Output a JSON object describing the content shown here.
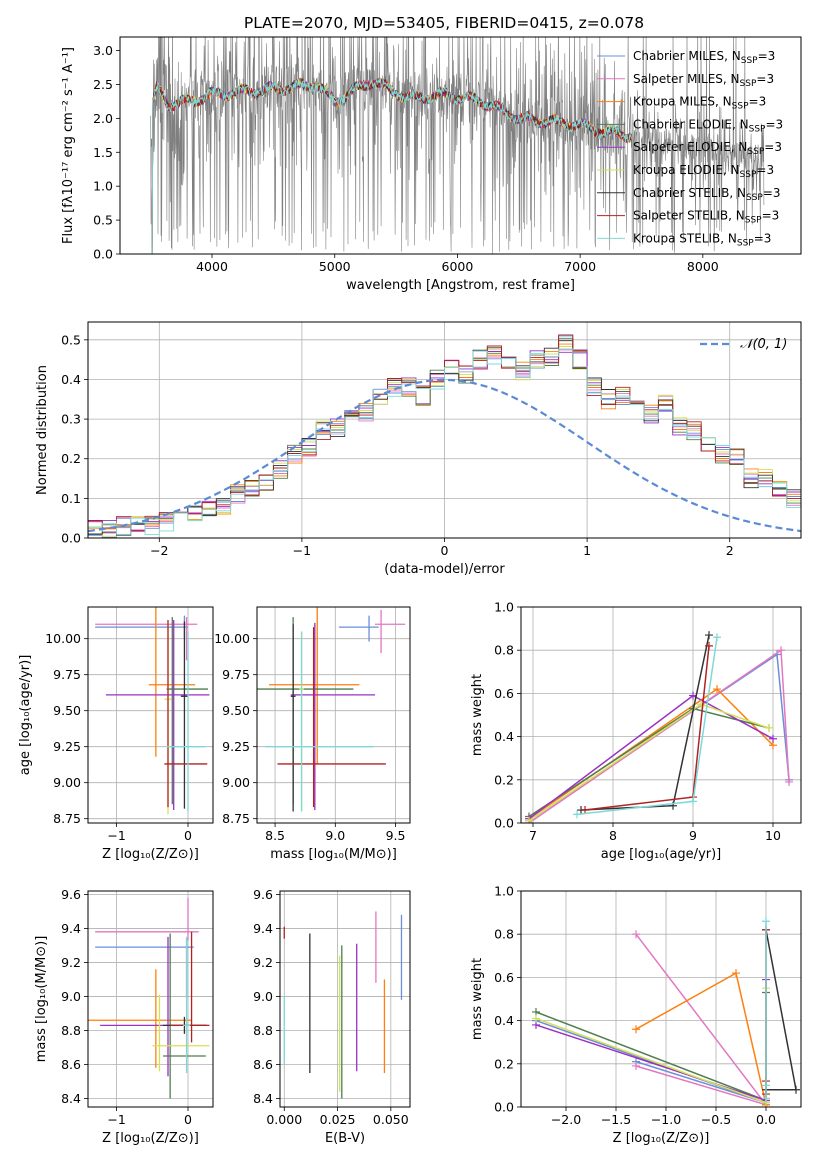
{
  "figure_title": "PLATE=2070, MJD=53405, FIBERID=0415, z=0.078",
  "chart_data": [
    {
      "type": "line",
      "id": "spectrum",
      "xlabel": "wavelength [Angstrom, rest frame]",
      "ylabel": "Flux [fλ10⁻¹⁷ erg cm⁻² s⁻¹ A⁻¹]",
      "xlim": [
        3250,
        8800
      ],
      "ylim": [
        0,
        3.2
      ],
      "xticks": [
        4000,
        5000,
        6000,
        7000,
        8000
      ],
      "yticks": [
        0.0,
        0.5,
        1.0,
        1.5,
        2.0,
        2.5,
        3.0
      ],
      "grid": false,
      "legend_position": "top-right",
      "data_color": "#7f7f7f",
      "data_wavelength_range": [
        3500,
        8500
      ],
      "model_wavelength_range": [
        3500,
        7420
      ],
      "model_continuum": {
        "x": [
          3500,
          3550,
          3650,
          3800,
          4000,
          4300,
          4600,
          4850,
          5000,
          5300,
          5600,
          5900,
          6200,
          6500,
          6800,
          7000,
          7200,
          7420,
          7700,
          8000,
          8300,
          8500
        ],
        "y": [
          2.05,
          2.45,
          2.2,
          2.25,
          2.35,
          2.4,
          2.45,
          2.5,
          2.25,
          2.55,
          2.3,
          2.35,
          2.25,
          2.0,
          1.95,
          1.9,
          1.8,
          1.75,
          1.65,
          1.55,
          1.45,
          1.4
        ]
      },
      "series": [
        {
          "name": "Chabrier MILES, N_SSP=3",
          "color": "#6a8fd8"
        },
        {
          "name": "Salpeter MILES, N_SSP=3",
          "color": "#e377c2"
        },
        {
          "name": "Kroupa MILES, N_SSP=3",
          "color": "#ff7f0e"
        },
        {
          "name": "Chabrier ELODIE, N_SSP=3",
          "color": "#4f7d4f"
        },
        {
          "name": "Salpeter ELODIE, N_SSP=3",
          "color": "#9b30c7"
        },
        {
          "name": "Kroupa ELODIE, N_SSP=3",
          "color": "#d4e157"
        },
        {
          "name": "Chabrier STELIB, N_SSP=3",
          "color": "#333333"
        },
        {
          "name": "Salpeter STELIB, N_SSP=3",
          "color": "#b22222"
        },
        {
          "name": "Kroupa STELIB, N_SSP=3",
          "color": "#7fd8d8"
        }
      ]
    },
    {
      "type": "histogram",
      "id": "residuals",
      "xlabel": "(data-model)/error",
      "ylabel": "Normed distribution",
      "xlim": [
        -2.5,
        2.5
      ],
      "ylim": [
        0,
        0.545
      ],
      "xticks": [
        -2,
        -1,
        0,
        1,
        2
      ],
      "yticks": [
        0.0,
        0.1,
        0.2,
        0.3,
        0.4,
        0.5
      ],
      "grid": true,
      "legend_position": "top-right",
      "reference_curve": {
        "label": "𝒩(0, 1)",
        "mean": 0,
        "sigma": 1,
        "color": "#5b8bd6"
      },
      "bin_width": 0.1,
      "bin_edges_start": -2.5,
      "base_heights": [
        0.02,
        0.02,
        0.03,
        0.04,
        0.03,
        0.04,
        0.05,
        0.06,
        0.08,
        0.08,
        0.11,
        0.13,
        0.14,
        0.17,
        0.21,
        0.23,
        0.27,
        0.28,
        0.3,
        0.32,
        0.36,
        0.38,
        0.38,
        0.36,
        0.4,
        0.43,
        0.41,
        0.45,
        0.46,
        0.44,
        0.42,
        0.45,
        0.46,
        0.49,
        0.45,
        0.38,
        0.35,
        0.36,
        0.34,
        0.31,
        0.34,
        0.28,
        0.27,
        0.24,
        0.21,
        0.2,
        0.15,
        0.15,
        0.13,
        0.1,
        0.09,
        0.07,
        0.07,
        0.05,
        0.04,
        0.04,
        0.03,
        0.03,
        0.02,
        0.02
      ],
      "series_colors": [
        "#6a8fd8",
        "#e377c2",
        "#ff7f0e",
        "#4f7d4f",
        "#9b30c7",
        "#d4e157",
        "#333333",
        "#b22222",
        "#7fd8d8"
      ]
    },
    {
      "type": "scatter",
      "id": "age_vs_Z",
      "xlabel": "Z [log₁₀(Z/Z⊙)]",
      "ylabel": "age  [log₁₀(age/yr)]",
      "xlim": [
        -1.4,
        0.35
      ],
      "ylim": [
        8.72,
        10.22
      ],
      "xticks": [
        -1,
        0
      ],
      "yticks": [
        8.75,
        9.0,
        9.25,
        9.5,
        9.75,
        10.0
      ],
      "grid": true,
      "points": [
        {
          "x": -0.05,
          "y": 10.08,
          "xerr": [
            1.25,
            0.05
          ],
          "yerr": [
            0.08,
            0.08
          ],
          "color": "#6a8fd8"
        },
        {
          "x": -0.02,
          "y": 10.1,
          "xerr": [
            1.28,
            0.15
          ],
          "yerr": [
            0.25,
            0.05
          ],
          "color": "#e377c2"
        },
        {
          "x": -0.45,
          "y": 9.68,
          "xerr": [
            0.1,
            0.55
          ],
          "yerr": [
            0.5,
            0.9
          ],
          "color": "#ff7f0e"
        },
        {
          "x": -0.22,
          "y": 9.65,
          "xerr": [
            0.08,
            0.5
          ],
          "yerr": [
            0.8,
            0.5
          ],
          "color": "#4f7d4f"
        },
        {
          "x": -0.2,
          "y": 9.61,
          "xerr": [
            0.95,
            0.5
          ],
          "yerr": [
            0.8,
            0.52
          ],
          "color": "#9b30c7"
        },
        {
          "x": -0.28,
          "y": 9.58,
          "xerr": [
            0.05,
            0.05
          ],
          "yerr": [
            0.8,
            0.5
          ],
          "color": "#d4e157"
        },
        {
          "x": -0.05,
          "y": 9.6,
          "xerr": [
            0.05,
            0.05
          ],
          "yerr": [
            0.78,
            0.52
          ],
          "color": "#333333"
        },
        {
          "x": -0.28,
          "y": 9.13,
          "xerr": [
            0.05,
            0.55
          ],
          "yerr": [
            0.3,
            1.0
          ],
          "color": "#b22222"
        },
        {
          "x": 0.0,
          "y": 9.25,
          "xerr": [
            0.3,
            0.25
          ],
          "yerr": [
            0.45,
            0.8
          ],
          "color": "#7fd8d8"
        }
      ]
    },
    {
      "type": "scatter",
      "id": "age_vs_mass",
      "xlabel": "mass [log₁₀(M/M⊙)]",
      "ylabel": "",
      "xlim": [
        8.35,
        9.62
      ],
      "ylim": [
        8.72,
        10.22
      ],
      "xticks": [
        8.5,
        9.0,
        9.5
      ],
      "yticks": [
        8.75,
        9.0,
        9.25,
        9.5,
        9.75,
        10.0
      ],
      "grid": true,
      "points": [
        {
          "x": 9.28,
          "y": 10.08,
          "xerr": [
            0.25,
            0.08
          ],
          "yerr": [
            0.1,
            0.08
          ],
          "color": "#6a8fd8"
        },
        {
          "x": 9.38,
          "y": 10.1,
          "xerr": [
            0.05,
            0.2
          ],
          "yerr": [
            0.2,
            0.1
          ],
          "color": "#e377c2"
        },
        {
          "x": 8.85,
          "y": 9.68,
          "xerr": [
            0.4,
            0.35
          ],
          "yerr": [
            0.55,
            0.9
          ],
          "color": "#ff7f0e"
        },
        {
          "x": 8.65,
          "y": 9.65,
          "xerr": [
            0.3,
            0.5
          ],
          "yerr": [
            0.8,
            0.5
          ],
          "color": "#4f7d4f"
        },
        {
          "x": 8.83,
          "y": 9.61,
          "xerr": [
            0.2,
            0.5
          ],
          "yerr": [
            0.8,
            0.5
          ],
          "color": "#9b30c7"
        },
        {
          "x": 8.72,
          "y": 9.65,
          "xerr": [
            0.02,
            0.02
          ],
          "yerr": [
            0.85,
            0.4
          ],
          "color": "#d4e157"
        },
        {
          "x": 8.65,
          "y": 9.6,
          "xerr": [
            0.02,
            0.02
          ],
          "yerr": [
            0.8,
            0.5
          ],
          "color": "#333333"
        },
        {
          "x": 8.82,
          "y": 9.13,
          "xerr": [
            0.3,
            0.6
          ],
          "yerr": [
            0.3,
            0.95
          ],
          "color": "#b22222"
        },
        {
          "x": 8.72,
          "y": 9.25,
          "xerr": [
            0.3,
            0.6
          ],
          "yerr": [
            0.45,
            0.8
          ],
          "color": "#7fd8d8"
        }
      ]
    },
    {
      "type": "line",
      "id": "weight_vs_age",
      "xlabel": "age  [log₁₀(age/yr)]",
      "ylabel": "mass weight",
      "xlim": [
        6.85,
        10.35
      ],
      "ylim": [
        0,
        1.0
      ],
      "xticks": [
        7,
        8,
        9,
        10
      ],
      "yticks": [
        0.0,
        0.2,
        0.4,
        0.6,
        0.8,
        1.0
      ],
      "grid": true,
      "series": [
        {
          "color": "#6a8fd8",
          "x": [
            6.95,
            10.05,
            10.2
          ],
          "y": [
            0.01,
            0.78,
            0.2
          ]
        },
        {
          "color": "#e377c2",
          "x": [
            6.95,
            10.1,
            10.2
          ],
          "y": [
            0.0,
            0.8,
            0.19
          ]
        },
        {
          "color": "#ff7f0e",
          "x": [
            6.95,
            9.3,
            10.0
          ],
          "y": [
            0.02,
            0.62,
            0.36
          ]
        },
        {
          "color": "#4f7d4f",
          "x": [
            6.95,
            9.0,
            9.95
          ],
          "y": [
            0.03,
            0.53,
            0.44
          ]
        },
        {
          "color": "#9b30c7",
          "x": [
            6.95,
            9.0,
            10.0
          ],
          "y": [
            0.02,
            0.59,
            0.39
          ]
        },
        {
          "color": "#d4e157",
          "x": [
            6.95,
            9.1,
            9.95
          ],
          "y": [
            0.01,
            0.55,
            0.44
          ]
        },
        {
          "color": "#333333",
          "x": [
            7.6,
            8.75,
            9.2
          ],
          "y": [
            0.06,
            0.08,
            0.87
          ]
        },
        {
          "color": "#b22222",
          "x": [
            7.65,
            9.0,
            9.2
          ],
          "y": [
            0.06,
            0.12,
            0.82
          ]
        },
        {
          "color": "#7fd8d8",
          "x": [
            7.55,
            9.0,
            9.3
          ],
          "y": [
            0.04,
            0.1,
            0.86
          ]
        }
      ]
    },
    {
      "type": "scatter",
      "id": "mass_vs_Z",
      "xlabel": "Z [log₁₀(Z/Z⊙)]",
      "ylabel": "mass [log₁₀(M/M⊙)]",
      "xlim": [
        -1.4,
        0.35
      ],
      "ylim": [
        8.35,
        9.62
      ],
      "xticks": [
        -1,
        0
      ],
      "yticks": [
        8.4,
        8.6,
        8.8,
        9.0,
        9.2,
        9.4,
        9.6
      ],
      "grid": true,
      "points": [
        {
          "x": -0.02,
          "y": 9.29,
          "xerr": [
            1.28,
            0.1
          ],
          "yerr": [
            0.3,
            0.05
          ],
          "color": "#6a8fd8"
        },
        {
          "x": 0.0,
          "y": 9.38,
          "xerr": [
            1.3,
            0.15
          ],
          "yerr": [
            0.05,
            0.2
          ],
          "color": "#e377c2"
        },
        {
          "x": -0.45,
          "y": 8.86,
          "xerr": [
            0.95,
            0.5
          ],
          "yerr": [
            0.28,
            0.3
          ],
          "color": "#ff7f0e"
        },
        {
          "x": -0.25,
          "y": 8.65,
          "xerr": [
            0.1,
            0.5
          ],
          "yerr": [
            0.25,
            0.72
          ],
          "color": "#4f7d4f"
        },
        {
          "x": -0.28,
          "y": 8.83,
          "xerr": [
            0.95,
            0.55
          ],
          "yerr": [
            0.3,
            0.52
          ],
          "color": "#9b30c7"
        },
        {
          "x": -0.4,
          "y": 8.71,
          "xerr": [
            0.1,
            0.7
          ],
          "yerr": [
            0.15,
            0.3
          ],
          "color": "#d4e157"
        },
        {
          "x": -0.05,
          "y": 8.83,
          "xerr": [
            0.3,
            0.3
          ],
          "yerr": [
            0.05,
            0.05
          ],
          "color": "#333333"
        },
        {
          "x": 0.05,
          "y": 8.83,
          "xerr": [
            0.3,
            0.25
          ],
          "yerr": [
            0.1,
            0.55
          ],
          "color": "#b22222"
        },
        {
          "x": -0.02,
          "y": 8.83,
          "xerr": [
            0.05,
            0.05
          ],
          "yerr": [
            0.28,
            0.52
          ],
          "color": "#7fd8d8"
        }
      ]
    },
    {
      "type": "scatter",
      "id": "mass_vs_ebv",
      "xlabel": "E(B-V)",
      "ylabel": "",
      "xlim": [
        -0.002,
        0.059
      ],
      "ylim": [
        8.35,
        9.62
      ],
      "xticks": [
        0.0,
        0.025,
        0.05
      ],
      "ytick_labels": [
        "8.4",
        "8.6",
        "8.8",
        "9.0",
        "9.2",
        "9.4",
        "9.6"
      ],
      "xtick_labels": [
        "0.000",
        "0.025",
        "0.050"
      ],
      "yticks": [
        8.4,
        8.6,
        8.8,
        9.0,
        9.2,
        9.4,
        9.6
      ],
      "grid": true,
      "points": [
        {
          "x": 0.055,
          "y": 9.23,
          "yerr": [
            0.25,
            0.25
          ],
          "color": "#6a8fd8"
        },
        {
          "x": 0.043,
          "y": 9.25,
          "yerr": [
            0.17,
            0.25
          ],
          "color": "#e377c2"
        },
        {
          "x": 0.047,
          "y": 8.85,
          "yerr": [
            0.3,
            0.25
          ],
          "color": "#ff7f0e"
        },
        {
          "x": 0.027,
          "y": 8.85,
          "yerr": [
            0.45,
            0.45
          ],
          "color": "#4f7d4f"
        },
        {
          "x": 0.034,
          "y": 8.96,
          "yerr": [
            0.4,
            0.35
          ],
          "color": "#9b30c7"
        },
        {
          "x": 0.026,
          "y": 8.84,
          "yerr": [
            0.4,
            0.4
          ],
          "color": "#d4e157"
        },
        {
          "x": 0.012,
          "y": 9.0,
          "yerr": [
            0.45,
            0.37
          ],
          "color": "#333333"
        },
        {
          "x": 0.0,
          "y": 9.36,
          "yerr": [
            0.02,
            0.05
          ],
          "color": "#b22222"
        },
        {
          "x": 0.0,
          "y": 8.8,
          "yerr": [
            0.2,
            0.2
          ],
          "color": "#7fd8d8"
        }
      ]
    },
    {
      "type": "line",
      "id": "weight_vs_Z",
      "xlabel": "Z [log₁₀(Z/Z⊙)]",
      "ylabel": "mass weight",
      "xlim": [
        -2.45,
        0.35
      ],
      "ylim": [
        0,
        1.0
      ],
      "xticks": [
        -2.0,
        -1.5,
        -1.0,
        -0.5,
        0.0
      ],
      "xtick_labels": [
        "−2.0",
        "−1.5",
        "−1.0",
        "−0.5",
        "0.0"
      ],
      "yticks": [
        0.0,
        0.2,
        0.4,
        0.6,
        0.8,
        1.0
      ],
      "grid": true,
      "series": [
        {
          "color": "#6a8fd8",
          "x": [
            -2.3,
            0.0,
            -1.3
          ],
          "y": [
            0.4,
            0.02,
            0.21
          ]
        },
        {
          "color": "#e377c2",
          "x": [
            -1.3,
            0.0,
            -1.3
          ],
          "y": [
            0.8,
            0.01,
            0.19
          ]
        },
        {
          "color": "#ff7f0e",
          "x": [
            -1.3,
            -0.3,
            0.0
          ],
          "y": [
            0.36,
            0.62,
            0.01
          ]
        },
        {
          "color": "#4f7d4f",
          "x": [
            -2.3,
            0.0,
            0.0
          ],
          "y": [
            0.44,
            0.03,
            0.53
          ]
        },
        {
          "color": "#9b30c7",
          "x": [
            -2.3,
            0.0,
            0.0
          ],
          "y": [
            0.38,
            0.03,
            0.59
          ]
        },
        {
          "color": "#d4e157",
          "x": [
            -2.3,
            0.0,
            0.0
          ],
          "y": [
            0.41,
            0.02,
            0.55
          ]
        },
        {
          "color": "#333333",
          "x": [
            0.0,
            0.3,
            0.0
          ],
          "y": [
            0.82,
            0.08,
            0.08
          ]
        },
        {
          "color": "#b22222",
          "x": [
            0.0,
            0.0,
            0.0
          ],
          "y": [
            0.82,
            0.12,
            0.06
          ]
        },
        {
          "color": "#7fd8d8",
          "x": [
            0.0,
            0.0,
            0.0
          ],
          "y": [
            0.86,
            0.1,
            0.04
          ]
        }
      ]
    }
  ]
}
